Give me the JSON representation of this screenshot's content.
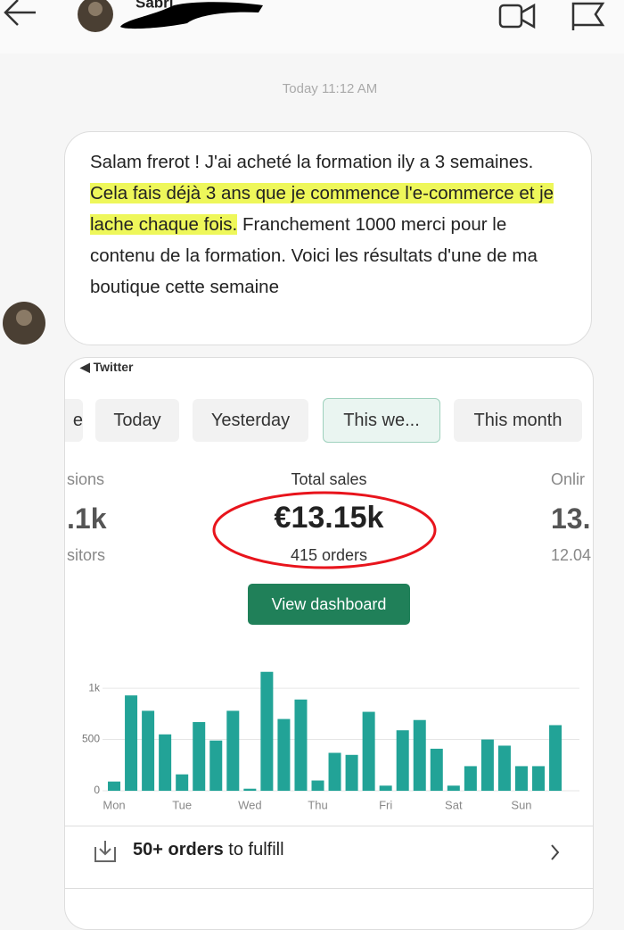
{
  "header": {
    "name": "Sabri"
  },
  "timestamp": "Today 11:12 AM",
  "message": {
    "parts": [
      "Salam frerot ! J'ai acheté la formation ily a 3 semaines.",
      "Cela fais déjà 3 ans que je commence l'e-commerce et je lache chaque fois.",
      "Franchement 1000 merci pour le contenu de la formation. Voici les résultats d'une de ma boutique cette semaine"
    ]
  },
  "card": {
    "source": "◀ Twitter",
    "tabs": [
      "e",
      "Today",
      "Yesterday",
      "This we...",
      "This month"
    ],
    "metrics": [
      {
        "label": "sions",
        "value": ".1k",
        "sub": "sitors"
      },
      {
        "label": "Total sales",
        "value": "€13.15k",
        "sub": "415 orders"
      },
      {
        "label": "Onlir",
        "value": "13.",
        "sub": "12.04"
      }
    ],
    "button": "View dashboard",
    "footer": {
      "bold": "50+ orders",
      "text": "to fulfill"
    }
  },
  "chart_data": {
    "type": "bar",
    "color": "#22a397",
    "categories": [
      "Mon",
      null,
      null,
      null,
      "Tue",
      null,
      null,
      null,
      "Wed",
      null,
      null,
      null,
      "Thu",
      null,
      null,
      null,
      "Fri",
      null,
      null,
      null,
      "Sat",
      null,
      null,
      null,
      "Sun",
      null,
      null
    ],
    "values": [
      90,
      930,
      780,
      550,
      160,
      670,
      490,
      780,
      20,
      1160,
      700,
      890,
      100,
      370,
      350,
      770,
      50,
      590,
      690,
      410,
      50,
      240,
      500,
      440,
      240,
      240,
      640
    ],
    "ylim": [
      0,
      1250
    ],
    "yticks": [
      0,
      500,
      {
        "value": 1000,
        "label": "1k"
      }
    ],
    "grid": true
  }
}
